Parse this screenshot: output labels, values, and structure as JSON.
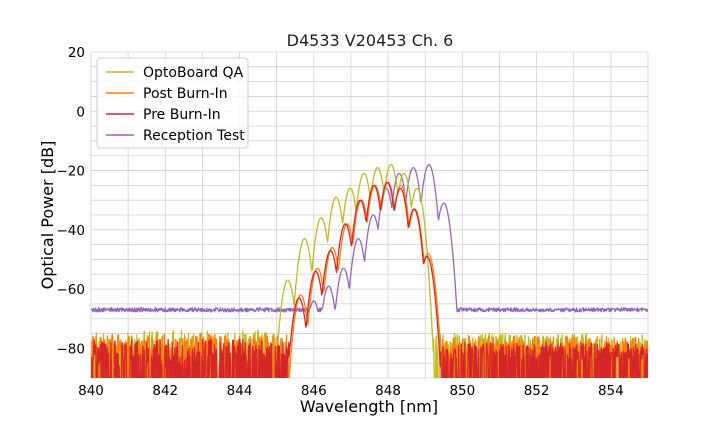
{
  "chart_data": {
    "type": "line",
    "title": "D4533 V20453 Ch. 6",
    "xlabel": "Wavelength [nm]",
    "ylabel": "Optical Power [dB]",
    "xlim": [
      840,
      855
    ],
    "ylim": [
      -90,
      20
    ],
    "xticks": [
      840,
      842,
      844,
      846,
      848,
      850,
      852,
      854
    ],
    "yticks": [
      -80,
      -60,
      -40,
      -20,
      0,
      20
    ],
    "xtick_labels": [
      "840",
      "842",
      "844",
      "846",
      "848",
      "850",
      "852",
      "854"
    ],
    "ytick_labels": [
      "−80",
      "−60",
      "−40",
      "−20",
      "0",
      "20"
    ],
    "grid": true,
    "legend_position": "top-left",
    "series": [
      {
        "name": "OptoBoard QA",
        "color": "#bcbd22",
        "noise_floor": -77,
        "noise_range": [
          840,
          849
        ],
        "peaks": [
          [
            845.3,
            -57
          ],
          [
            845.75,
            -43
          ],
          [
            846.2,
            -36
          ],
          [
            846.6,
            -29
          ],
          [
            846.98,
            -26
          ],
          [
            847.35,
            -21
          ],
          [
            847.72,
            -19
          ],
          [
            848.08,
            -18
          ],
          [
            848.43,
            -21
          ],
          [
            848.78,
            -26
          ]
        ]
      },
      {
        "name": "Post Burn-In",
        "color": "#ff7f0e",
        "noise_floor": -78,
        "noise_range": [
          840,
          849.3
        ],
        "peaks": [
          [
            845.65,
            -62
          ],
          [
            846.1,
            -53
          ],
          [
            846.5,
            -46
          ],
          [
            846.9,
            -38
          ],
          [
            847.28,
            -30
          ],
          [
            847.65,
            -25
          ],
          [
            848.0,
            -24
          ],
          [
            848.35,
            -25
          ],
          [
            848.72,
            -33
          ],
          [
            849.08,
            -48
          ]
        ]
      },
      {
        "name": "Pre Burn-In",
        "color": "#d62728",
        "noise_floor": -80,
        "noise_range": [
          840,
          849.3
        ],
        "peaks": [
          [
            845.6,
            -63
          ],
          [
            846.05,
            -54
          ],
          [
            846.45,
            -47
          ],
          [
            846.85,
            -38
          ],
          [
            847.25,
            -30
          ],
          [
            847.62,
            -25
          ],
          [
            847.98,
            -24
          ],
          [
            848.33,
            -26
          ],
          [
            848.7,
            -33
          ],
          [
            849.05,
            -49
          ]
        ]
      },
      {
        "name": "Reception Test",
        "color": "#9467bd",
        "noise_floor": -67,
        "noise_range": [
          840,
          855
        ],
        "peaks": [
          [
            846.0,
            -64
          ],
          [
            846.4,
            -59
          ],
          [
            846.8,
            -53
          ],
          [
            847.2,
            -43
          ],
          [
            847.6,
            -35
          ],
          [
            847.95,
            -26
          ],
          [
            848.3,
            -21
          ],
          [
            848.68,
            -19
          ],
          [
            849.1,
            -18
          ],
          [
            849.5,
            -31
          ]
        ]
      }
    ]
  }
}
